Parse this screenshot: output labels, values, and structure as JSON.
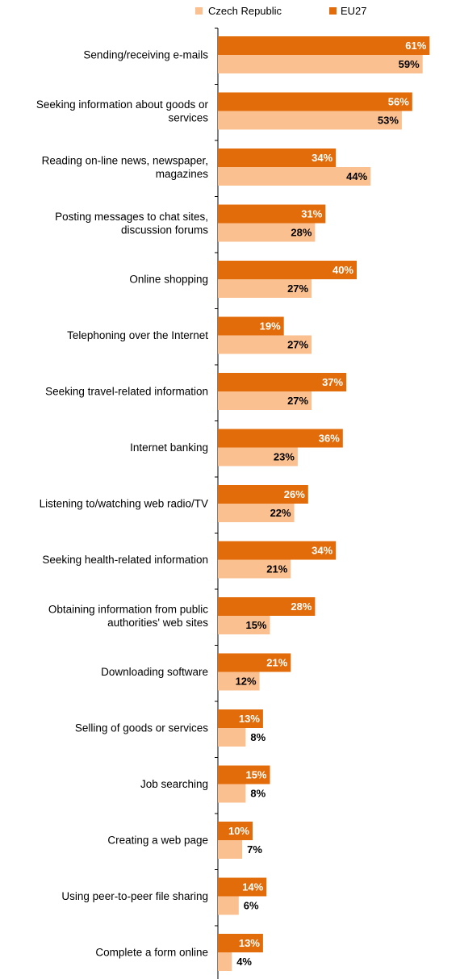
{
  "chart_data": {
    "type": "bar",
    "orientation": "horizontal",
    "categories": [
      [
        "Sending/receiving e-mails"
      ],
      [
        "Seeking information about goods or",
        "services"
      ],
      [
        "Reading on-line news, newspaper,",
        "magazines"
      ],
      [
        "Posting messages to chat sites,",
        "discussion forums"
      ],
      [
        "Online shopping"
      ],
      [
        "Telephoning over the Internet"
      ],
      [
        "Seeking travel-related information"
      ],
      [
        "Internet banking"
      ],
      [
        "Listening to/watching web radio/TV"
      ],
      [
        "Seeking health-related information"
      ],
      [
        "Obtaining information from public",
        "authorities' web sites"
      ],
      [
        "Downloading software"
      ],
      [
        "Selling of goods or services"
      ],
      [
        "Job searching"
      ],
      [
        "Creating a web page"
      ],
      [
        "Using peer-to-peer file sharing"
      ],
      [
        "Complete a form online"
      ]
    ],
    "series": [
      {
        "name": "EU27",
        "color": "#e36c0a",
        "values": [
          61,
          56,
          34,
          31,
          40,
          19,
          37,
          36,
          26,
          34,
          28,
          21,
          13,
          15,
          10,
          14,
          13
        ],
        "labels": [
          "61%",
          "56%",
          "34%",
          "31%",
          "40%",
          "19%",
          "37%",
          "36%",
          "26%",
          "34%",
          "28%",
          "21%",
          "13%",
          "15%",
          "10%",
          "14%",
          "13%"
        ]
      },
      {
        "name": "Czech Republic",
        "color": "#fac090",
        "values": [
          59,
          53,
          44,
          28,
          27,
          27,
          27,
          23,
          22,
          21,
          15,
          12,
          8,
          8,
          7,
          6,
          4
        ],
        "labels": [
          "59%",
          "53%",
          "44%",
          "28%",
          "27%",
          "27%",
          "27%",
          "23%",
          "22%",
          "21%",
          "15%",
          "12%",
          "8%",
          "8%",
          "7%",
          "6%",
          "4%"
        ]
      }
    ],
    "legend": {
      "position": "top",
      "entries": [
        "Czech Republic",
        "EU27"
      ]
    },
    "xlim": [
      0,
      70
    ],
    "grid": false,
    "label_colors": {
      "on_bar": "#ffffff",
      "outside": "#000000"
    }
  }
}
